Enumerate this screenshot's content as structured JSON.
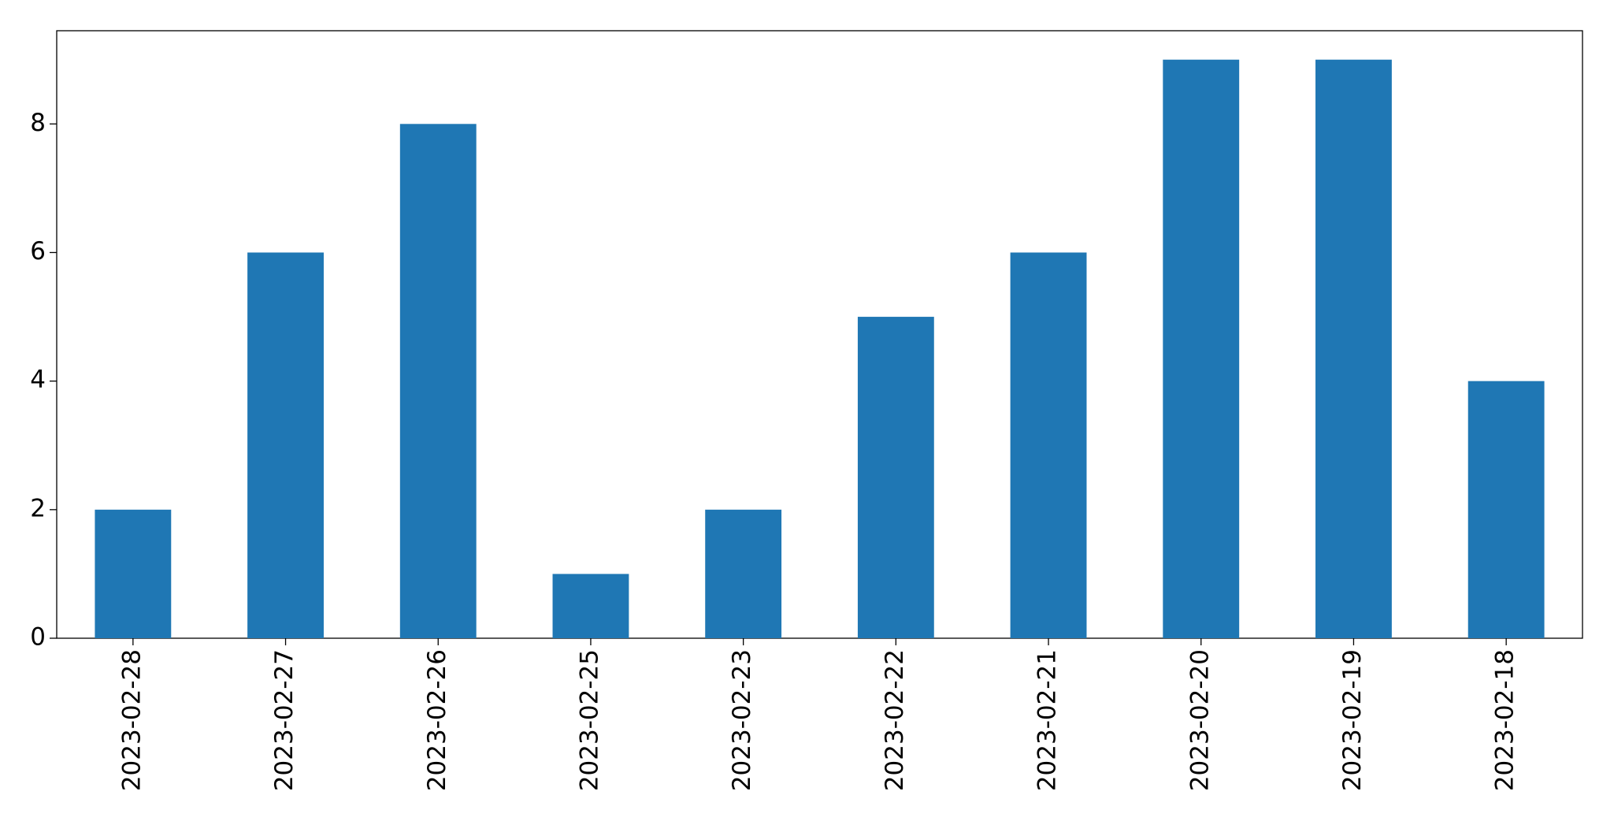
{
  "chart_data": {
    "type": "bar",
    "categories": [
      "2023-02-28",
      "2023-02-27",
      "2023-02-26",
      "2023-02-25",
      "2023-02-23",
      "2023-02-22",
      "2023-02-21",
      "2023-02-20",
      "2023-02-19",
      "2023-02-18"
    ],
    "values": [
      2,
      6,
      8,
      1,
      2,
      5,
      6,
      9,
      9,
      4
    ],
    "color": "#1f77b4",
    "ylim": [
      0,
      9.45
    ],
    "yticks": [
      0,
      2,
      4,
      6,
      8
    ],
    "grid": false
  }
}
